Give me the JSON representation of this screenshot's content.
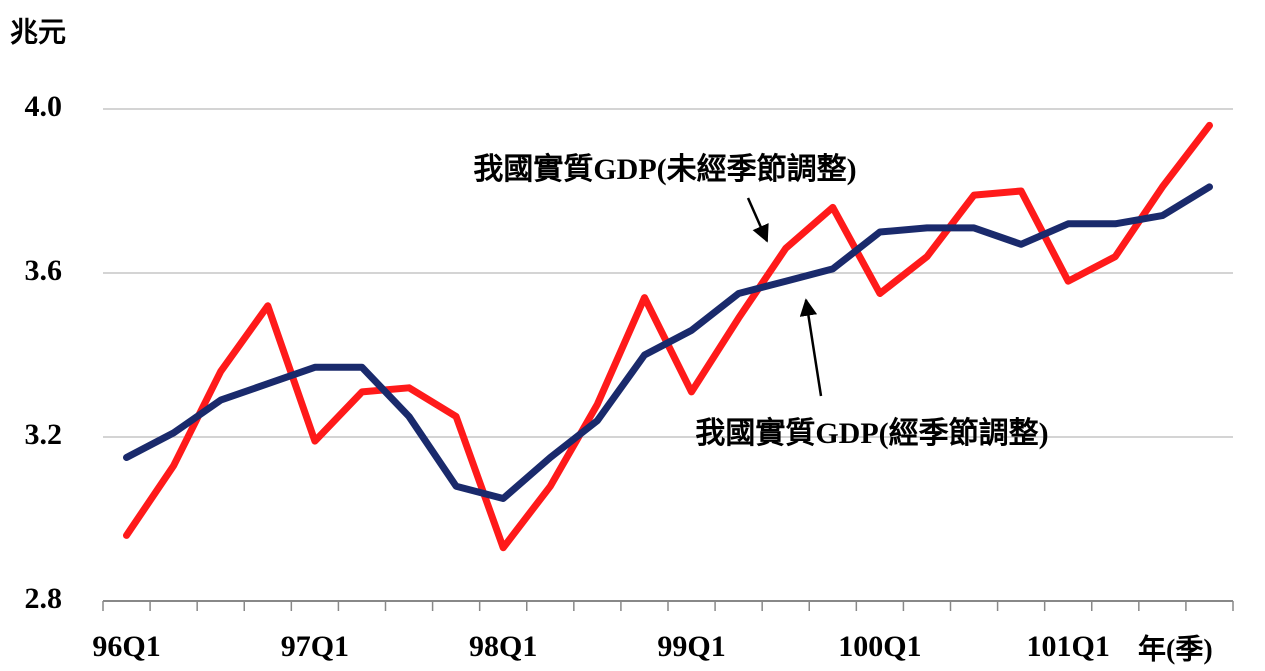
{
  "chart_data": {
    "type": "line",
    "y_axis_label": "兆元",
    "x_axis_label": "年(季)",
    "categories": [
      "96Q1",
      null,
      null,
      null,
      "97Q1",
      null,
      null,
      null,
      "98Q1",
      null,
      null,
      null,
      "99Q1",
      null,
      null,
      null,
      "100Q1",
      null,
      null,
      null,
      "101Q1",
      null,
      null,
      null
    ],
    "series": [
      {
        "name": "我國實質GDP(未經季節調整)",
        "color": "#ff1a1a",
        "values": [
          2.96,
          3.13,
          3.36,
          3.52,
          3.19,
          3.31,
          3.32,
          3.25,
          2.93,
          3.08,
          3.28,
          3.54,
          3.31,
          3.49,
          3.66,
          3.76,
          3.55,
          3.64,
          3.79,
          3.8,
          3.58,
          3.64,
          3.81,
          3.96
        ]
      },
      {
        "name": "我國實質GDP(經季節調整)",
        "color": "#1a2a6c",
        "values": [
          3.15,
          3.21,
          3.29,
          3.33,
          3.37,
          3.37,
          3.25,
          3.08,
          3.05,
          3.15,
          3.24,
          3.4,
          3.46,
          3.55,
          3.58,
          3.61,
          3.7,
          3.71,
          3.71,
          3.67,
          3.72,
          3.72,
          3.74,
          3.81
        ]
      }
    ],
    "ylim": [
      2.8,
      4.0
    ],
    "yticks": [
      {
        "value": 2.8,
        "label": "2.8"
      },
      {
        "value": 3.2,
        "label": "3.2"
      },
      {
        "value": 3.6,
        "label": "3.6"
      },
      {
        "value": 4.0,
        "label": "4.0"
      }
    ],
    "grid": true
  }
}
